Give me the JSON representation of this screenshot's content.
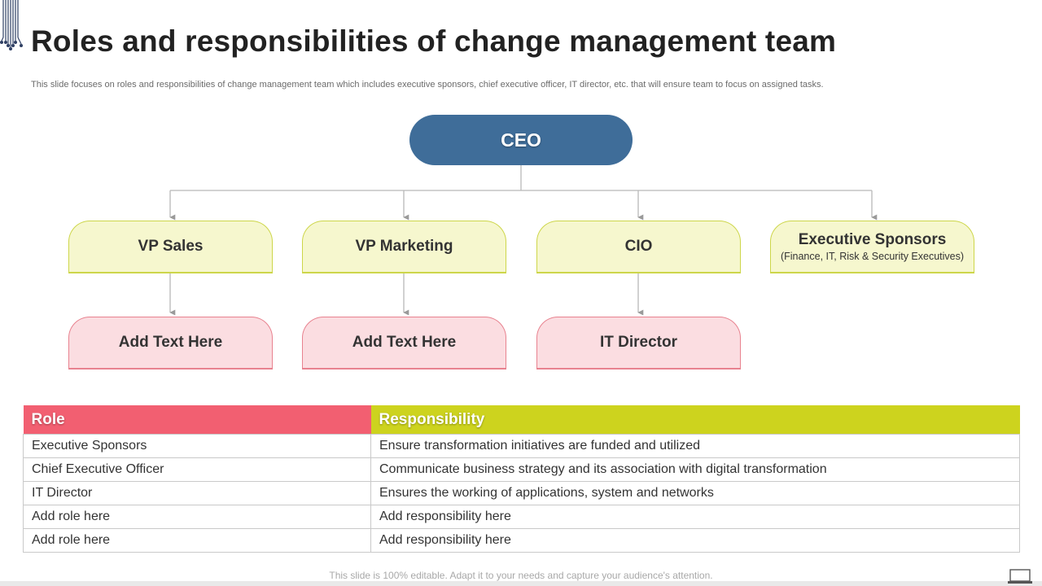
{
  "title": "Roles and responsibilities of change management team",
  "subtitle": "This slide focuses on roles and responsibilities of change management team which includes executive sponsors, chief executive officer, IT director, etc. that will ensure team to focus on assigned tasks.",
  "org_chart": {
    "top": {
      "label": "CEO"
    },
    "level1": [
      {
        "label": "VP Sales",
        "sub": ""
      },
      {
        "label": "VP Marketing",
        "sub": ""
      },
      {
        "label": "CIO",
        "sub": ""
      },
      {
        "label": "Executive Sponsors",
        "sub": "(Finance, IT, Risk & Security Executives)"
      }
    ],
    "level2": [
      {
        "label": "Add Text Here"
      },
      {
        "label": "Add Text Here"
      },
      {
        "label": "IT Director"
      }
    ]
  },
  "table": {
    "headers": {
      "role": "Role",
      "responsibility": "Responsibility"
    },
    "rows": [
      {
        "role": "Executive Sponsors",
        "responsibility": "Ensure transformation initiatives are funded and utilized"
      },
      {
        "role": "Chief Executive Officer",
        "responsibility": "Communicate business strategy and its association with digital transformation"
      },
      {
        "role": "IT Director",
        "responsibility": "Ensures the working of applications, system and networks"
      },
      {
        "role": "Add role here",
        "responsibility": "Add responsibility here"
      },
      {
        "role": "Add role here",
        "responsibility": "Add responsibility here"
      }
    ]
  },
  "footer": "This slide is 100% editable. Adapt it to your needs and capture your audience's attention.",
  "icons": {
    "decoration": "circuit-lines-icon",
    "presentation": "laptop-icon"
  },
  "colors": {
    "ceo_fill": "#3f6d99",
    "level1_fill": "#f6f7ce",
    "level1_border": "#cdd64a",
    "level2_fill": "#fbdde1",
    "level2_border": "#e8828f",
    "role_header": "#f25f71",
    "responsibility_header": "#cdd31e"
  }
}
